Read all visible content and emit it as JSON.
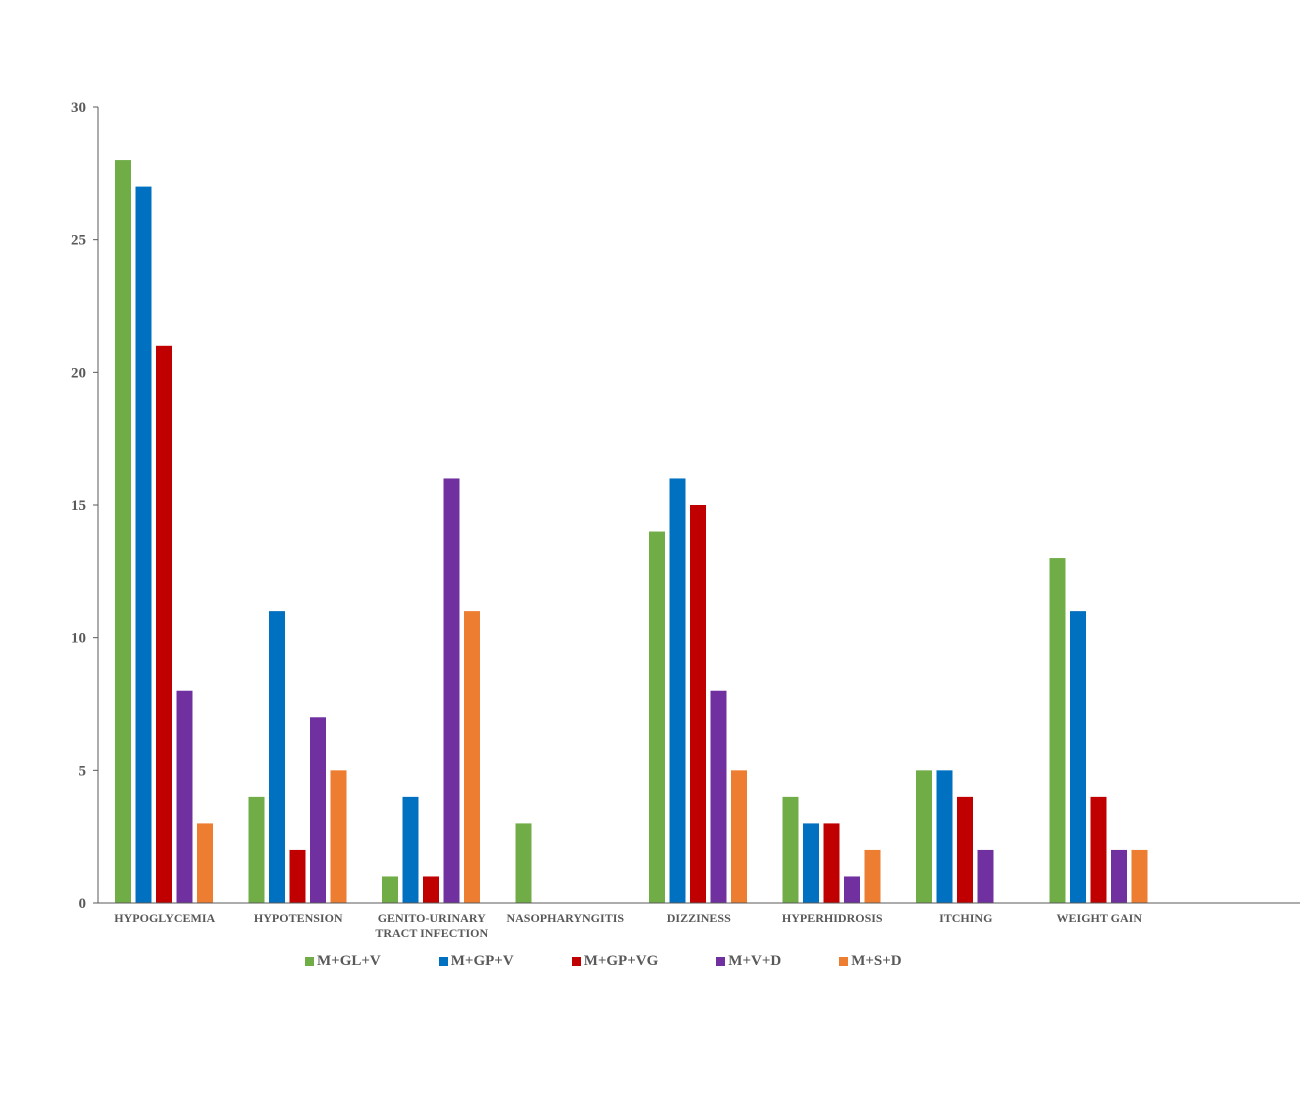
{
  "chart_data": {
    "type": "bar",
    "title": "",
    "xlabel": "",
    "ylabel": "",
    "ylim": [
      0,
      30
    ],
    "yticks": [
      0,
      5,
      10,
      15,
      20,
      25,
      30
    ],
    "grid": false,
    "legend_position": "bottom",
    "categories": [
      [
        "HYPOGLYCEMIA"
      ],
      [
        "HYPOTENSION"
      ],
      [
        "GENITO-URINARY",
        "TRACT INFECTION"
      ],
      [
        "NASOPHARYNGITIS"
      ],
      [
        "DIZZINESS"
      ],
      [
        "HYPERHIDROSIS"
      ],
      [
        "ITCHING"
      ],
      [
        "WEIGHT GAIN"
      ]
    ],
    "series": [
      {
        "name": "M+GL+V",
        "color": "#70AD47",
        "values": [
          28,
          4,
          1,
          3,
          14,
          4,
          5,
          13
        ]
      },
      {
        "name": "M+GP+V",
        "color": "#0070C0",
        "values": [
          27,
          11,
          4,
          0,
          16,
          3,
          5,
          11
        ]
      },
      {
        "name": "M+GP+VG",
        "color": "#C00000",
        "values": [
          21,
          2,
          1,
          0,
          15,
          3,
          4,
          4
        ]
      },
      {
        "name": "M+V+D",
        "color": "#7030A0",
        "values": [
          8,
          7,
          16,
          0,
          8,
          1,
          2,
          2
        ]
      },
      {
        "name": "M+S+D",
        "color": "#ED7D31",
        "values": [
          3,
          5,
          11,
          0,
          5,
          2,
          0,
          2
        ]
      }
    ]
  }
}
